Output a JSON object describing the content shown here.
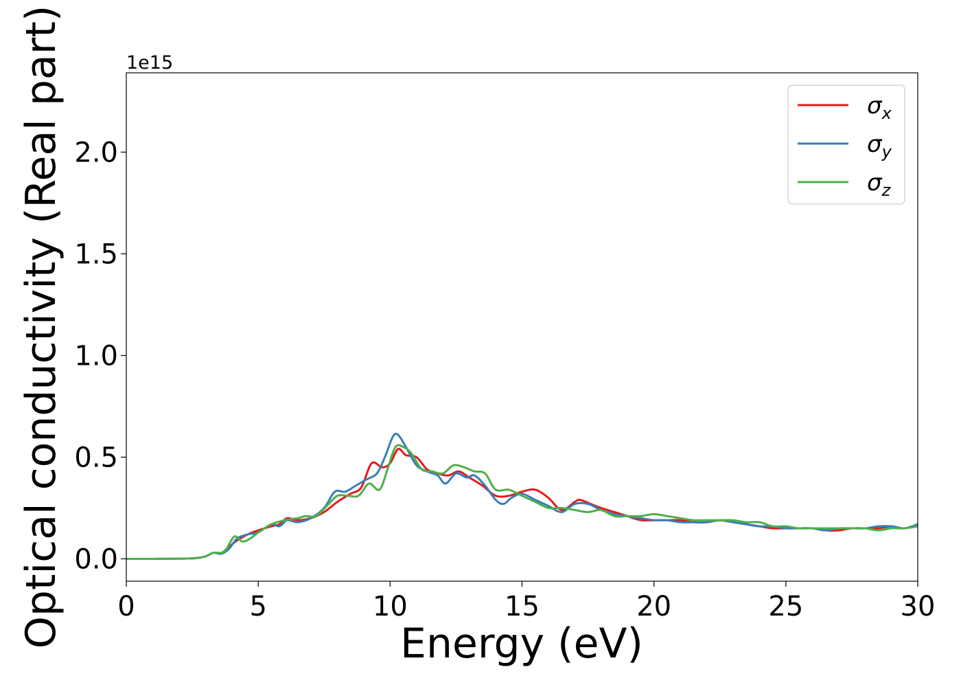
{
  "chart_data": {
    "type": "line",
    "title": "",
    "xlabel": "Energy (eV)",
    "ylabel": "Optical conductivity (Real part)",
    "y_offset_label": "1e15",
    "xlim": [
      0,
      30
    ],
    "ylim": [
      -0.11,
      2.39
    ],
    "x_ticks": [
      0,
      5,
      10,
      15,
      20,
      25,
      30
    ],
    "x_tick_labels": [
      "0",
      "5",
      "10",
      "15",
      "20",
      "25",
      "30"
    ],
    "y_ticks": [
      0.0,
      0.5,
      1.0,
      1.5,
      2.0
    ],
    "y_tick_labels": [
      "0.0",
      "0.5",
      "1.0",
      "1.5",
      "2.0"
    ],
    "grid": false,
    "legend_position": "top-right",
    "series": [
      {
        "name": "σx",
        "legend_base": "σ",
        "legend_sub": "x",
        "color": "#e41a1c",
        "x": [
          0,
          1,
          2,
          2.6,
          3.0,
          3.3,
          3.6,
          3.9,
          4.2,
          4.6,
          5.0,
          5.5,
          5.8,
          6.1,
          6.5,
          7.0,
          7.5,
          8.0,
          8.5,
          8.9,
          9.3,
          9.7,
          10.0,
          10.3,
          10.6,
          11.0,
          11.4,
          11.8,
          12.2,
          12.6,
          13.0,
          13.5,
          14.0,
          14.5,
          15.0,
          15.5,
          16.0,
          16.5,
          17.0,
          17.2,
          17.6,
          18.0,
          18.5,
          19.0,
          19.5,
          20.0,
          20.5,
          21.0,
          21.5,
          22.0,
          22.5,
          23.0,
          23.5,
          24.0,
          24.5,
          25.0,
          25.5,
          26.0,
          26.5,
          27.0,
          27.5,
          28.0,
          28.5,
          29.0,
          29.5,
          30.0
        ],
        "values": [
          0,
          0,
          0.001,
          0.003,
          0.012,
          0.03,
          0.028,
          0.06,
          0.09,
          0.12,
          0.14,
          0.16,
          0.17,
          0.2,
          0.19,
          0.2,
          0.23,
          0.28,
          0.32,
          0.35,
          0.47,
          0.45,
          0.47,
          0.54,
          0.51,
          0.5,
          0.44,
          0.42,
          0.41,
          0.43,
          0.4,
          0.36,
          0.31,
          0.31,
          0.33,
          0.34,
          0.3,
          0.24,
          0.28,
          0.29,
          0.27,
          0.25,
          0.23,
          0.21,
          0.19,
          0.19,
          0.19,
          0.19,
          0.18,
          0.18,
          0.19,
          0.18,
          0.17,
          0.16,
          0.15,
          0.15,
          0.15,
          0.15,
          0.14,
          0.14,
          0.15,
          0.15,
          0.15,
          0.16,
          0.15,
          0.17
        ]
      },
      {
        "name": "σy",
        "legend_base": "σ",
        "legend_sub": "y",
        "color": "#377eb8",
        "x": [
          0,
          1,
          2,
          2.6,
          3.0,
          3.3,
          3.6,
          3.9,
          4.2,
          4.6,
          5.0,
          5.5,
          5.8,
          6.1,
          6.5,
          7.0,
          7.5,
          7.9,
          8.3,
          8.7,
          9.1,
          9.5,
          9.8,
          10.1,
          10.3,
          10.6,
          11.0,
          11.4,
          11.8,
          12.1,
          12.5,
          12.9,
          13.2,
          13.6,
          14.0,
          14.3,
          14.6,
          15.0,
          15.5,
          16.0,
          16.5,
          17.0,
          17.5,
          18.0,
          18.5,
          19.0,
          19.5,
          20.0,
          20.5,
          21.0,
          21.5,
          22.0,
          22.5,
          23.0,
          23.5,
          24.0,
          24.5,
          25.0,
          25.5,
          26.0,
          26.5,
          27.0,
          27.5,
          28.0,
          28.5,
          29.0,
          29.5,
          30.0
        ],
        "values": [
          0,
          0,
          0.001,
          0.003,
          0.012,
          0.03,
          0.025,
          0.05,
          0.1,
          0.12,
          0.13,
          0.17,
          0.16,
          0.19,
          0.18,
          0.2,
          0.25,
          0.33,
          0.33,
          0.36,
          0.39,
          0.42,
          0.5,
          0.6,
          0.61,
          0.55,
          0.46,
          0.43,
          0.41,
          0.37,
          0.42,
          0.4,
          0.41,
          0.36,
          0.29,
          0.27,
          0.3,
          0.32,
          0.29,
          0.26,
          0.23,
          0.27,
          0.27,
          0.24,
          0.22,
          0.21,
          0.2,
          0.19,
          0.19,
          0.18,
          0.18,
          0.18,
          0.19,
          0.18,
          0.17,
          0.16,
          0.16,
          0.15,
          0.15,
          0.15,
          0.14,
          0.15,
          0.15,
          0.15,
          0.16,
          0.16,
          0.15,
          0.17
        ]
      },
      {
        "name": "σz",
        "legend_base": "σ",
        "legend_sub": "z",
        "color": "#4daf4a",
        "x": [
          0,
          1,
          2,
          2.6,
          3.0,
          3.3,
          3.6,
          3.8,
          4.1,
          4.4,
          4.7,
          5.0,
          5.5,
          6.0,
          6.5,
          6.8,
          7.2,
          7.6,
          8.0,
          8.4,
          8.8,
          9.2,
          9.6,
          9.9,
          10.2,
          10.5,
          10.8,
          11.2,
          11.6,
          12.0,
          12.4,
          12.8,
          13.2,
          13.6,
          14.0,
          14.5,
          15.0,
          15.5,
          16.0,
          16.5,
          17.0,
          17.5,
          18.0,
          18.5,
          19.0,
          19.5,
          20.0,
          20.5,
          21.0,
          21.5,
          22.0,
          22.5,
          23.0,
          23.5,
          24.0,
          24.5,
          25.0,
          25.5,
          26.0,
          26.5,
          27.0,
          27.5,
          28.0,
          28.5,
          29.0,
          29.5,
          30.0
        ],
        "values": [
          0,
          0,
          0.001,
          0.003,
          0.012,
          0.03,
          0.03,
          0.05,
          0.11,
          0.085,
          0.1,
          0.13,
          0.17,
          0.19,
          0.2,
          0.21,
          0.21,
          0.26,
          0.31,
          0.31,
          0.31,
          0.37,
          0.34,
          0.44,
          0.55,
          0.55,
          0.52,
          0.44,
          0.43,
          0.42,
          0.46,
          0.45,
          0.43,
          0.42,
          0.34,
          0.34,
          0.31,
          0.28,
          0.25,
          0.25,
          0.24,
          0.23,
          0.24,
          0.21,
          0.21,
          0.21,
          0.22,
          0.21,
          0.2,
          0.19,
          0.19,
          0.19,
          0.19,
          0.18,
          0.18,
          0.16,
          0.16,
          0.15,
          0.15,
          0.15,
          0.15,
          0.15,
          0.15,
          0.14,
          0.15,
          0.15,
          0.16
        ]
      }
    ]
  }
}
